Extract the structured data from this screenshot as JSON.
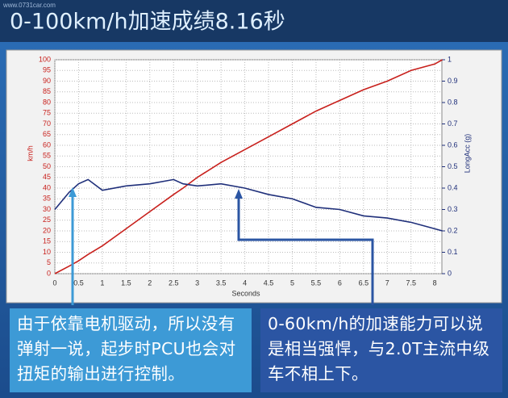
{
  "chart_data": {
    "type": "line",
    "title": "0-100km/h加速成绩8.16秒",
    "watermark": "www.0731car.com",
    "xlabel": "Seconds",
    "ylabel": "km/h",
    "y2label": "LongAcc (g)",
    "x": [
      0,
      0.3,
      0.5,
      0.7,
      1,
      1.5,
      2,
      2.5,
      2.7,
      3,
      3.5,
      4,
      4.5,
      5,
      5.5,
      6,
      6.5,
      7,
      7.5,
      8,
      8.16
    ],
    "series": [
      {
        "name": "km/h",
        "color": "#c8201c",
        "values": [
          0,
          3.5,
          6,
          9,
          13,
          21,
          29,
          37,
          40,
          45,
          52,
          58,
          64,
          70,
          76,
          81,
          86,
          90,
          95,
          98,
          100
        ]
      },
      {
        "name": "LongAcc (g)",
        "color": "#1f2f7a",
        "axis": "y2",
        "values": [
          0.3,
          0.38,
          0.42,
          0.44,
          0.39,
          0.41,
          0.42,
          0.44,
          0.42,
          0.41,
          0.42,
          0.4,
          0.37,
          0.35,
          0.31,
          0.3,
          0.27,
          0.26,
          0.24,
          0.21,
          0.2
        ]
      }
    ],
    "xlim": [
      0,
      8.15
    ],
    "ylim": [
      0,
      100
    ],
    "y2lim": [
      0,
      1
    ],
    "xticks": [
      0,
      0.5,
      1,
      1.5,
      2,
      2.5,
      3,
      3.5,
      4,
      4.5,
      5,
      5.5,
      6,
      6.5,
      7,
      7.5,
      8
    ],
    "yticks": [
      0,
      5,
      10,
      15,
      20,
      25,
      30,
      35,
      40,
      45,
      50,
      55,
      60,
      65,
      70,
      75,
      80,
      85,
      90,
      95,
      100
    ],
    "y2ticks": [
      0,
      0.1,
      0.2,
      0.3,
      0.4,
      0.5,
      0.6,
      0.7,
      0.8,
      0.9,
      1
    ],
    "grid": true,
    "annotations": [
      {
        "text": "由于依靠电机驱动，所以没有弹射一说，起步时PCU也会对扭矩的输出进行控制。",
        "color": "#3d9ad6"
      },
      {
        "text": "0-60km/h的加速能力可以说是相当强悍，与2.0T主流中级车不相上下。",
        "color": "#2b55a3"
      }
    ]
  }
}
